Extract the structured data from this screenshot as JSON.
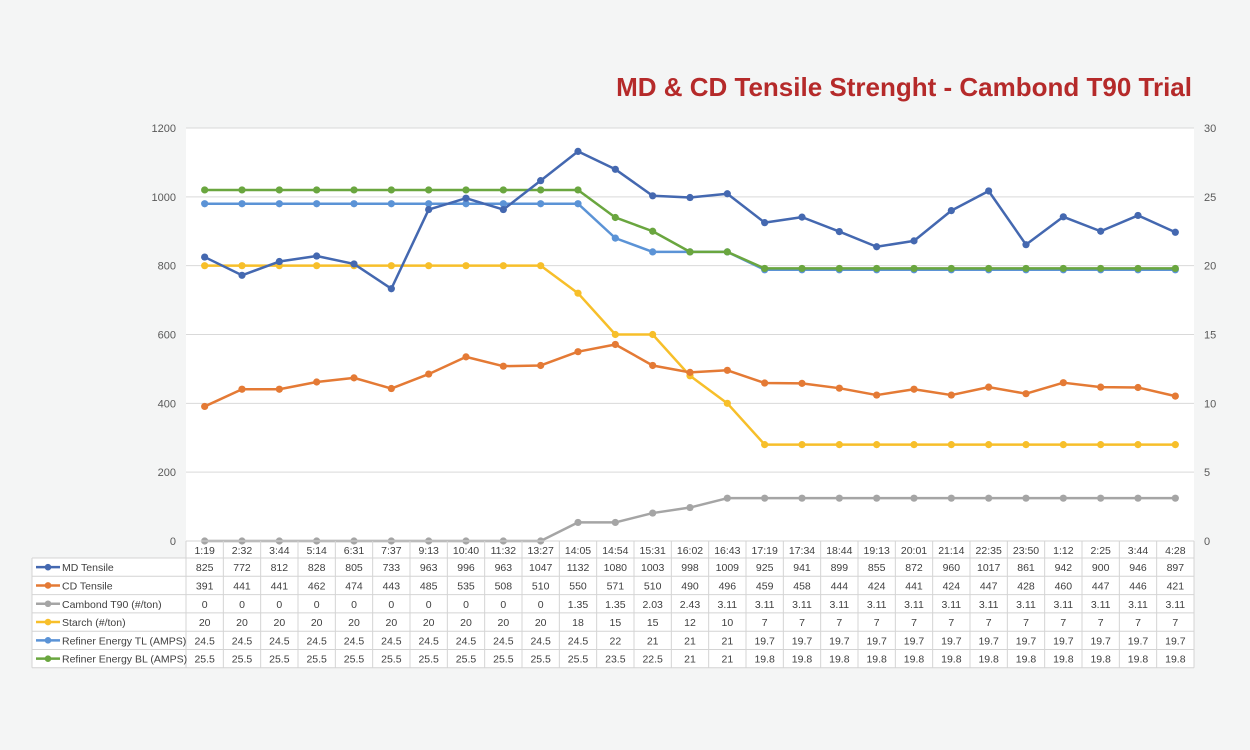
{
  "chart_data": {
    "type": "line",
    "title": "MD & CD Tensile Strenght - Cambond T90 Trial",
    "categories": [
      "1:19",
      "2:32",
      "3:44",
      "5:14",
      "6:31",
      "7:37",
      "9:13",
      "10:40",
      "11:32",
      "13:27",
      "14:05",
      "14:54",
      "15:31",
      "16:02",
      "16:43",
      "17:19",
      "17:34",
      "18:44",
      "19:13",
      "20:01",
      "21:14",
      "22:35",
      "23:50",
      "1:12",
      "2:25",
      "3:44",
      "4:28"
    ],
    "ylim_left": [
      0,
      1200
    ],
    "yticks_left": [
      0,
      200,
      400,
      600,
      800,
      1000,
      1200
    ],
    "ylim_right": [
      0,
      30
    ],
    "yticks_right": [
      0,
      5,
      10,
      15,
      20,
      25,
      30
    ],
    "grid": true,
    "legend": "data-table-below",
    "series": [
      {
        "name": "MD Tensile",
        "axis": "left",
        "color": "#4468b0",
        "values": [
          825,
          772,
          812,
          828,
          805,
          733,
          963,
          996,
          963,
          1047,
          1132,
          1080,
          1003,
          998,
          1009,
          925,
          941,
          899,
          855,
          872,
          960,
          1017,
          861,
          942,
          900,
          946,
          897
        ],
        "labels": [
          "825",
          "772",
          "812",
          "828",
          "805",
          "733",
          "963",
          "996",
          "963",
          "1047",
          "1132",
          "1080",
          "1003",
          "998",
          "1009",
          "925",
          "941",
          "899",
          "855",
          "872",
          "960",
          "1017",
          "861",
          "942",
          "900",
          "946",
          "897"
        ]
      },
      {
        "name": "CD Tensile",
        "axis": "left",
        "color": "#e47a35",
        "values": [
          391,
          441,
          441,
          462,
          474,
          443,
          485,
          535,
          508,
          510,
          550,
          571,
          510,
          490,
          496,
          459,
          458,
          444,
          424,
          441,
          424,
          447,
          428,
          460,
          447,
          446,
          421
        ],
        "labels": [
          "391",
          "441",
          "441",
          "462",
          "474",
          "443",
          "485",
          "535",
          "508",
          "510",
          "550",
          "571",
          "510",
          "490",
          "496",
          "459",
          "458",
          "444",
          "424",
          "441",
          "424",
          "447",
          "428",
          "460",
          "447",
          "446",
          "421"
        ]
      },
      {
        "name": "Cambond T90 (#/ton)",
        "axis": "right",
        "color": "#a5a5a5",
        "values": [
          0,
          0,
          0,
          0,
          0,
          0,
          0,
          0,
          0,
          0,
          1.35,
          1.35,
          2.03,
          2.43,
          3.11,
          3.11,
          3.11,
          3.11,
          3.11,
          3.11,
          3.11,
          3.11,
          3.11,
          3.11,
          3.11,
          3.11,
          3.11
        ],
        "labels": [
          "0",
          "0",
          "0",
          "0",
          "0",
          "0",
          "0",
          "0",
          "0",
          "0",
          "1.35",
          "1.35",
          "2.03",
          "2.43",
          "3.11",
          "3.11",
          "3.11",
          "3.11",
          "3.11",
          "3.11",
          "3.11",
          "3.11",
          "3.11",
          "3.11",
          "3.11",
          "3.11",
          "3.11"
        ]
      },
      {
        "name": "Starch (#/ton)",
        "axis": "right",
        "color": "#f7bf2a",
        "values": [
          20,
          20,
          20,
          20,
          20,
          20,
          20,
          20,
          20,
          20,
          18,
          15,
          15,
          12,
          10,
          7,
          7,
          7,
          7,
          7,
          7,
          7,
          7,
          7,
          7,
          7,
          7
        ],
        "labels": [
          "20",
          "20",
          "20",
          "20",
          "20",
          "20",
          "20",
          "20",
          "20",
          "20",
          "18",
          "15",
          "15",
          "12",
          "10",
          "7",
          "7",
          "7",
          "7",
          "7",
          "7",
          "7",
          "7",
          "7",
          "7",
          "7",
          "7"
        ]
      },
      {
        "name": "Refiner Energy TL (AMPS)",
        "axis": "right",
        "color": "#5b93d6",
        "values": [
          24.5,
          24.5,
          24.5,
          24.5,
          24.5,
          24.5,
          24.5,
          24.5,
          24.5,
          24.5,
          24.5,
          22,
          21,
          21,
          21,
          19.7,
          19.7,
          19.7,
          19.7,
          19.7,
          19.7,
          19.7,
          19.7,
          19.7,
          19.7,
          19.7,
          19.7
        ],
        "labels": [
          "24.5",
          "24.5",
          "24.5",
          "24.5",
          "24.5",
          "24.5",
          "24.5",
          "24.5",
          "24.5",
          "24.5",
          "24.5",
          "22",
          "21",
          "21",
          "21",
          "19.7",
          "19.7",
          "19.7",
          "19.7",
          "19.7",
          "19.7",
          "19.7",
          "19.7",
          "19.7",
          "19.7",
          "19.7",
          "19.7"
        ]
      },
      {
        "name": "Refiner Energy BL (AMPS)",
        "axis": "right",
        "color": "#6aa63f",
        "values": [
          25.5,
          25.5,
          25.5,
          25.5,
          25.5,
          25.5,
          25.5,
          25.5,
          25.5,
          25.5,
          25.5,
          23.5,
          22.5,
          21,
          21,
          19.8,
          19.8,
          19.8,
          19.8,
          19.8,
          19.8,
          19.8,
          19.8,
          19.8,
          19.8,
          19.8,
          19.8
        ],
        "labels": [
          "25.5",
          "25.5",
          "25.5",
          "25.5",
          "25.5",
          "25.5",
          "25.5",
          "25.5",
          "25.5",
          "25.5",
          "25.5",
          "23.5",
          "22.5",
          "21",
          "21",
          "19.8",
          "19.8",
          "19.8",
          "19.8",
          "19.8",
          "19.8",
          "19.8",
          "19.8",
          "19.8",
          "19.8",
          "19.8",
          "19.8"
        ]
      }
    ]
  }
}
